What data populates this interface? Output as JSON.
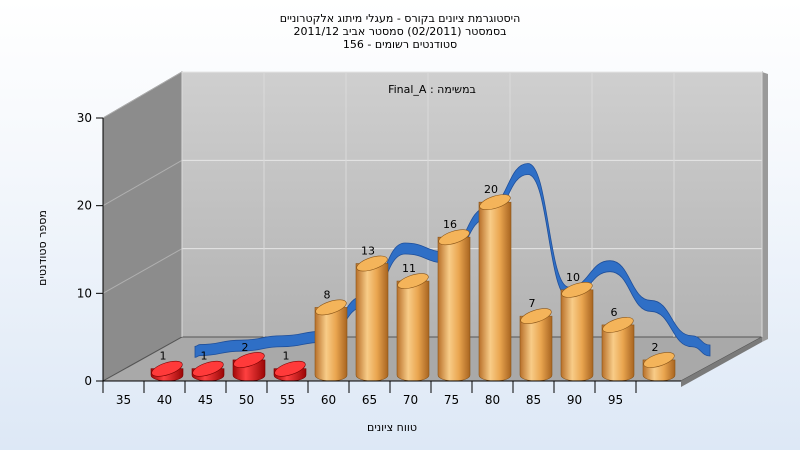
{
  "title_lines": [
    "היסטוגרמת ציונים בקורס - מעגלי מיתוג אלקטרוניים",
    "בסמסטר  (02/2011)  סמסטר אביב 2011/12",
    "סטודנטים רשומים - 156"
  ],
  "subtitle": "במשימה : Final_A",
  "colors": {
    "failing_bar": "#e01818",
    "passing_bar": "#e8a040",
    "curve": "#2f6fc6",
    "back_wall": "#c2c2c2",
    "side_wall": "#8a8a8a",
    "floor": "#a8a8a8"
  },
  "chart_data": {
    "type": "bar",
    "title": "היסטוגרמת ציונים בקורס - מעגלי מיתוג אלקטרוניים",
    "xlabel": "טווח ציונים",
    "ylabel": "מספר סטודנטים",
    "ylim": [
      0,
      30
    ],
    "yticks": [
      0,
      10,
      20,
      30
    ],
    "grid": true,
    "categories": [
      "35",
      "40",
      "45",
      "50",
      "55",
      "60",
      "65",
      "70",
      "75",
      "80",
      "85",
      "90",
      "95"
    ],
    "series": [
      {
        "values": [
          1,
          1,
          2,
          1,
          8,
          13,
          11,
          16,
          20,
          7,
          10,
          6,
          2
        ],
        "labels": [
          "1",
          "1",
          "2",
          "1",
          "8",
          "13",
          "11",
          "16",
          "20",
          "7",
          "10",
          "6",
          "2"
        ]
      }
    ],
    "failing_count": 4,
    "curve_values": [
      0.5,
      1.0,
      1.5,
      2.0,
      6.0,
      12.0,
      11.0,
      16.0,
      21.0,
      7.0,
      10.0,
      5.5,
      1.5
    ]
  }
}
